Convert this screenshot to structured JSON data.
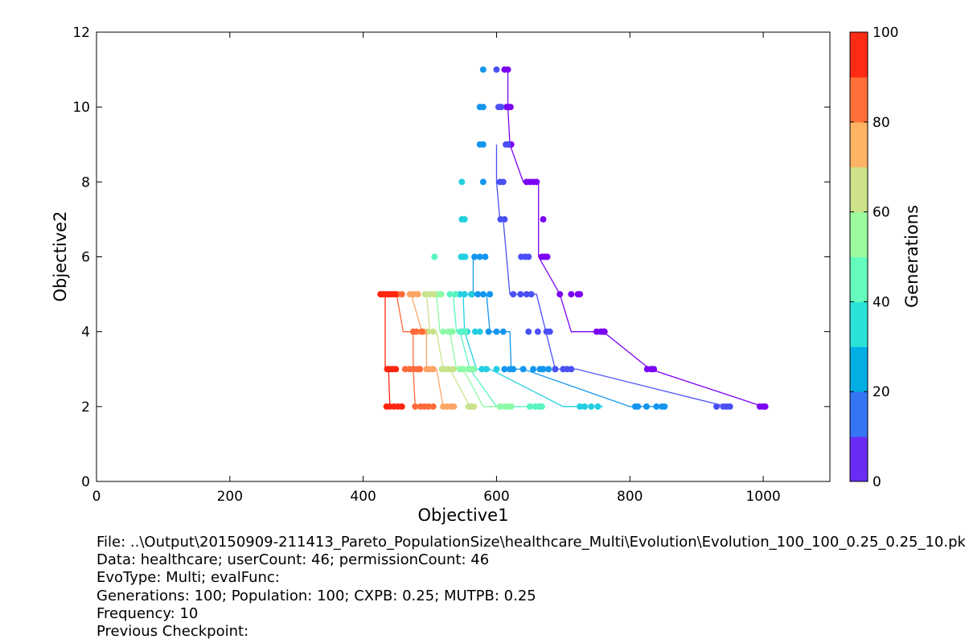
{
  "chart_data": {
    "type": "scatter",
    "xlabel": "Objective1",
    "ylabel": "Objective2",
    "xlim": [
      0,
      1100
    ],
    "ylim": [
      0,
      12
    ],
    "x_ticks": [
      "0",
      "200",
      "400",
      "600",
      "800",
      "1000"
    ],
    "y_ticks": [
      "0",
      "2",
      "4",
      "6",
      "8",
      "10",
      "12"
    ],
    "grid": false,
    "colorbar": {
      "label": "Generations",
      "range": [
        0,
        100
      ],
      "ticks": [
        "0",
        "20",
        "40",
        "60",
        "80",
        "100"
      ],
      "colors": [
        "#6a2cf5",
        "#3674f6",
        "#03aee5",
        "#2be2d8",
        "#64fbbd",
        "#9cfb9f",
        "#cde289",
        "#ffb464",
        "#ff7039",
        "#ff2b14"
      ]
    },
    "series": [
      {
        "generation": 1,
        "color": "#7b02f3",
        "front": [
          [
            617,
            11
          ],
          [
            617,
            10
          ],
          [
            620,
            9
          ],
          [
            640,
            8
          ],
          [
            663,
            8
          ],
          [
            663,
            6
          ],
          [
            695,
            5
          ],
          [
            712,
            4
          ],
          [
            760,
            4
          ],
          [
            830,
            3
          ],
          [
            1000,
            2
          ]
        ],
        "points": [
          [
            612,
            11
          ],
          [
            617,
            11
          ],
          [
            615,
            10
          ],
          [
            618,
            10
          ],
          [
            621,
            10
          ],
          [
            618,
            9
          ],
          [
            622,
            9
          ],
          [
            645,
            8
          ],
          [
            650,
            8
          ],
          [
            655,
            8
          ],
          [
            660,
            8
          ],
          [
            670,
            7
          ],
          [
            668,
            6
          ],
          [
            672,
            6
          ],
          [
            676,
            6
          ],
          [
            695,
            5
          ],
          [
            712,
            5
          ],
          [
            722,
            5
          ],
          [
            725,
            5
          ],
          [
            750,
            4
          ],
          [
            756,
            4
          ],
          [
            760,
            4
          ],
          [
            762,
            4
          ],
          [
            826,
            3
          ],
          [
            832,
            3
          ],
          [
            836,
            3
          ],
          [
            995,
            2
          ],
          [
            1000,
            2
          ],
          [
            1003,
            2
          ]
        ]
      },
      {
        "generation": 11,
        "color": "#4a50f5",
        "front": [
          [
            600,
            9
          ],
          [
            600,
            8
          ],
          [
            605,
            7
          ],
          [
            610,
            7
          ],
          [
            620,
            5
          ],
          [
            650,
            5
          ],
          [
            660,
            5
          ],
          [
            688,
            3
          ],
          [
            720,
            3
          ],
          [
            945,
            2
          ]
        ],
        "points": [
          [
            600,
            11
          ],
          [
            603,
            10
          ],
          [
            607,
            10
          ],
          [
            614,
            9
          ],
          [
            617,
            9
          ],
          [
            605,
            8
          ],
          [
            610,
            8
          ],
          [
            606,
            7
          ],
          [
            612,
            7
          ],
          [
            637,
            6
          ],
          [
            643,
            6
          ],
          [
            648,
            6
          ],
          [
            625,
            5
          ],
          [
            636,
            5
          ],
          [
            645,
            5
          ],
          [
            652,
            5
          ],
          [
            648,
            4
          ],
          [
            662,
            4
          ],
          [
            675,
            4
          ],
          [
            680,
            4
          ],
          [
            688,
            3
          ],
          [
            700,
            3
          ],
          [
            706,
            3
          ],
          [
            712,
            3
          ],
          [
            930,
            2
          ],
          [
            940,
            2
          ],
          [
            945,
            2
          ],
          [
            950,
            2
          ]
        ]
      },
      {
        "generation": 21,
        "color": "#1496ee",
        "front": [
          [
            565,
            6
          ],
          [
            565,
            5
          ],
          [
            585,
            5
          ],
          [
            590,
            4
          ],
          [
            620,
            4
          ],
          [
            622,
            3
          ],
          [
            640,
            3
          ],
          [
            800,
            2
          ],
          [
            850,
            2
          ]
        ],
        "points": [
          [
            580,
            11
          ],
          [
            575,
            10
          ],
          [
            580,
            10
          ],
          [
            575,
            9
          ],
          [
            580,
            9
          ],
          [
            580,
            8
          ],
          [
            567,
            6
          ],
          [
            575,
            6
          ],
          [
            583,
            6
          ],
          [
            563,
            5
          ],
          [
            572,
            5
          ],
          [
            580,
            5
          ],
          [
            590,
            5
          ],
          [
            588,
            4
          ],
          [
            600,
            4
          ],
          [
            610,
            4
          ],
          [
            612,
            3
          ],
          [
            620,
            3
          ],
          [
            625,
            3
          ],
          [
            640,
            3
          ],
          [
            655,
            3
          ],
          [
            665,
            3
          ],
          [
            670,
            3
          ],
          [
            678,
            3
          ],
          [
            808,
            2
          ],
          [
            812,
            2
          ],
          [
            825,
            2
          ],
          [
            840,
            2
          ],
          [
            848,
            2
          ],
          [
            852,
            2
          ]
        ]
      },
      {
        "generation": 31,
        "color": "#23cfe0",
        "front": [
          [
            550,
            5
          ],
          [
            552,
            4
          ],
          [
            570,
            3
          ],
          [
            590,
            3
          ],
          [
            700,
            2
          ],
          [
            720,
            2
          ],
          [
            760,
            2
          ]
        ],
        "points": [
          [
            548,
            8
          ],
          [
            548,
            7
          ],
          [
            552,
            7
          ],
          [
            547,
            6
          ],
          [
            550,
            6
          ],
          [
            553,
            6
          ],
          [
            545,
            5
          ],
          [
            552,
            5
          ],
          [
            562,
            5
          ],
          [
            548,
            4
          ],
          [
            556,
            4
          ],
          [
            568,
            4
          ],
          [
            575,
            4
          ],
          [
            578,
            3
          ],
          [
            585,
            3
          ],
          [
            600,
            3
          ],
          [
            725,
            2
          ],
          [
            732,
            2
          ],
          [
            742,
            2
          ],
          [
            752,
            2
          ]
        ]
      },
      {
        "generation": 41,
        "color": "#59f4c3",
        "front": [
          [
            535,
            5
          ],
          [
            540,
            4
          ],
          [
            545,
            4
          ],
          [
            560,
            3
          ],
          [
            600,
            2
          ],
          [
            650,
            2
          ],
          [
            660,
            2
          ]
        ],
        "points": [
          [
            507,
            6
          ],
          [
            530,
            5
          ],
          [
            538,
            5
          ],
          [
            533,
            4
          ],
          [
            545,
            4
          ],
          [
            553,
            4
          ],
          [
            560,
            3
          ],
          [
            566,
            3
          ],
          [
            650,
            2
          ],
          [
            658,
            2
          ],
          [
            664,
            2
          ],
          [
            668,
            2
          ]
        ]
      },
      {
        "generation": 51,
        "color": "#8dfaa6",
        "front": [
          [
            510,
            5
          ],
          [
            515,
            4
          ],
          [
            530,
            4
          ],
          [
            540,
            3
          ],
          [
            550,
            3
          ],
          [
            580,
            2
          ],
          [
            600,
            2
          ]
        ],
        "points": [
          [
            508,
            5
          ],
          [
            513,
            5
          ],
          [
            517,
            5
          ],
          [
            520,
            4
          ],
          [
            528,
            4
          ],
          [
            534,
            4
          ],
          [
            545,
            3
          ],
          [
            550,
            3
          ],
          [
            558,
            3
          ],
          [
            565,
            3
          ],
          [
            605,
            2
          ],
          [
            612,
            2
          ],
          [
            618,
            2
          ],
          [
            622,
            2
          ]
        ]
      },
      {
        "generation": 61,
        "color": "#c7e38c",
        "front": [
          [
            495,
            5
          ],
          [
            500,
            4
          ],
          [
            510,
            4
          ],
          [
            520,
            3
          ],
          [
            530,
            3
          ],
          [
            560,
            2
          ]
        ],
        "points": [
          [
            493,
            5
          ],
          [
            500,
            5
          ],
          [
            506,
            5
          ],
          [
            497,
            4
          ],
          [
            505,
            4
          ],
          [
            518,
            3
          ],
          [
            522,
            3
          ],
          [
            528,
            3
          ],
          [
            535,
            3
          ],
          [
            558,
            2
          ],
          [
            562,
            2
          ],
          [
            566,
            2
          ]
        ]
      },
      {
        "generation": 71,
        "color": "#fca565",
        "front": [
          [
            472,
            5
          ],
          [
            488,
            4
          ],
          [
            495,
            4
          ],
          [
            495,
            3
          ],
          [
            510,
            3
          ],
          [
            520,
            2
          ]
        ],
        "points": [
          [
            470,
            5
          ],
          [
            476,
            5
          ],
          [
            482,
            5
          ],
          [
            487,
            4
          ],
          [
            491,
            4
          ],
          [
            495,
            3
          ],
          [
            500,
            3
          ],
          [
            505,
            3
          ],
          [
            520,
            2
          ],
          [
            526,
            2
          ],
          [
            532,
            2
          ],
          [
            536,
            2
          ]
        ]
      },
      {
        "generation": 81,
        "color": "#ff6a3a",
        "front": [
          [
            450,
            5
          ],
          [
            460,
            4
          ],
          [
            475,
            4
          ],
          [
            475,
            3
          ],
          [
            478,
            2
          ],
          [
            490,
            2
          ]
        ],
        "points": [
          [
            445,
            5
          ],
          [
            452,
            5
          ],
          [
            458,
            5
          ],
          [
            475,
            4
          ],
          [
            480,
            4
          ],
          [
            488,
            4
          ],
          [
            463,
            3
          ],
          [
            470,
            3
          ],
          [
            476,
            3
          ],
          [
            482,
            3
          ],
          [
            485,
            3
          ],
          [
            478,
            2
          ],
          [
            486,
            2
          ],
          [
            492,
            2
          ],
          [
            498,
            2
          ],
          [
            505,
            2
          ]
        ]
      },
      {
        "generation": 91,
        "color": "#ff2510",
        "front": [
          [
            430,
            5
          ],
          [
            433,
            5
          ],
          [
            433,
            3
          ],
          [
            438,
            3
          ],
          [
            440,
            2
          ],
          [
            458,
            2
          ]
        ],
        "points": [
          [
            426,
            5
          ],
          [
            430,
            5
          ],
          [
            434,
            5
          ],
          [
            438,
            5
          ],
          [
            442,
            5
          ],
          [
            448,
            5
          ],
          [
            436,
            3
          ],
          [
            440,
            3
          ],
          [
            444,
            3
          ],
          [
            449,
            3
          ],
          [
            435,
            2
          ],
          [
            440,
            2
          ],
          [
            446,
            2
          ],
          [
            452,
            2
          ],
          [
            458,
            2
          ]
        ]
      }
    ]
  },
  "info": {
    "file": "File: ..\\Output\\20150909-211413_Pareto_PopulationSize\\healthcare_Multi\\Evolution\\Evolution_100_100_0.25_0.25_10.pkl",
    "data": "Data: healthcare; userCount: 46; permissionCount: 46",
    "evotype": "EvoType: Multi; evalFunc:",
    "generations": "Generations: 100; Population: 100; CXPB: 0.25; MUTPB: 0.25",
    "frequency": "Frequency: 10",
    "checkpoint": "Previous Checkpoint:"
  }
}
